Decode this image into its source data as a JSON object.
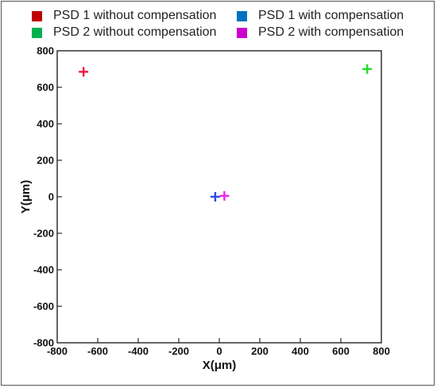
{
  "chart_data": {
    "type": "scatter",
    "title": "",
    "xlabel": "X(μm)",
    "ylabel": "Y(μm)",
    "xlim": [
      -800,
      800
    ],
    "ylim": [
      -800,
      800
    ],
    "xticks": [
      -800,
      -600,
      -400,
      -200,
      0,
      200,
      400,
      600,
      800
    ],
    "yticks": [
      -800,
      -600,
      -400,
      -200,
      0,
      200,
      400,
      600,
      800
    ],
    "grid": false,
    "legend_position": "top",
    "marker": "plus",
    "series": [
      {
        "name": "PSD 1 without compensation",
        "legend_color": "#c00000",
        "marker_color": "#e8173c",
        "points": [
          {
            "x": -670,
            "y": 685
          }
        ]
      },
      {
        "name": "PSD 1 with compensation",
        "legend_color": "#0070c0",
        "marker_color": "#2f47e8",
        "points": [
          {
            "x": -20,
            "y": 0
          }
        ]
      },
      {
        "name": "PSD 2 without compensation",
        "legend_color": "#00b050",
        "marker_color": "#22e022",
        "points": [
          {
            "x": 730,
            "y": 700
          }
        ]
      },
      {
        "name": "PSD 2 with compensation",
        "legend_color": "#cc00cc",
        "marker_color": "#ee22ee",
        "points": [
          {
            "x": 25,
            "y": 5
          }
        ]
      }
    ]
  }
}
